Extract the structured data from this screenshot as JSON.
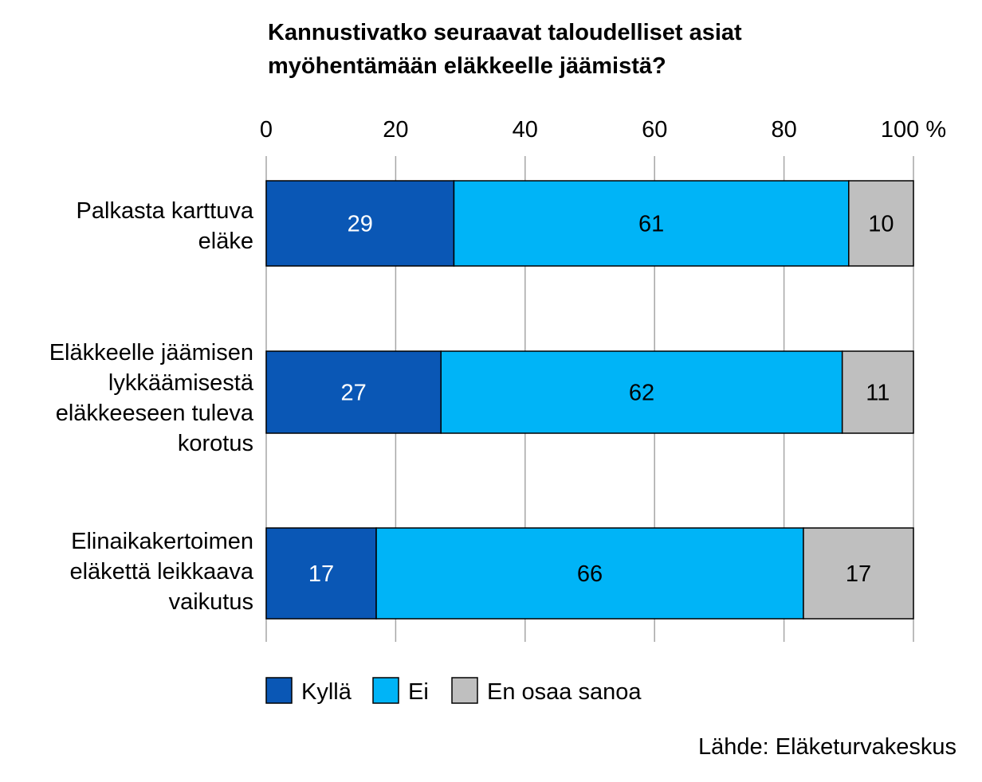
{
  "title_lines": [
    "Kannustivatko seuraavat taloudelliset asiat",
    "myöhentämään eläkkeelle jäämistä?"
  ],
  "source": "Lähde: Eläketurvakeskus",
  "chart_data": {
    "type": "bar",
    "orientation": "horizontal",
    "stacked": true,
    "title": "Kannustivatko seuraavat taloudelliset asiat myöhentämään eläkkeelle jäämistä?",
    "xlim": [
      0,
      100
    ],
    "x_ticks": [
      "0",
      "20",
      "40",
      "60",
      "80",
      "100 %"
    ],
    "grid": true,
    "legend_position": "bottom",
    "categories": [
      [
        "Palkasta karttuva",
        "eläke"
      ],
      [
        "Eläkkeelle jäämisen",
        "lykkäämisestä",
        "eläkkeeseen tuleva",
        "korotus"
      ],
      [
        "Elinaikakertoimen",
        "eläkettä leikkaava",
        "vaikutus"
      ]
    ],
    "series": [
      {
        "name": "Kyllä",
        "color": "#0A57B5",
        "label_color": "#ffffff",
        "values": [
          29,
          27,
          17
        ]
      },
      {
        "name": "Ei",
        "color": "#00B4F7",
        "label_color": "#000000",
        "values": [
          61,
          62,
          66
        ]
      },
      {
        "name": "En osaa sanoa",
        "color": "#BFBFBF",
        "label_color": "#000000",
        "values": [
          10,
          11,
          17
        ]
      }
    ]
  }
}
